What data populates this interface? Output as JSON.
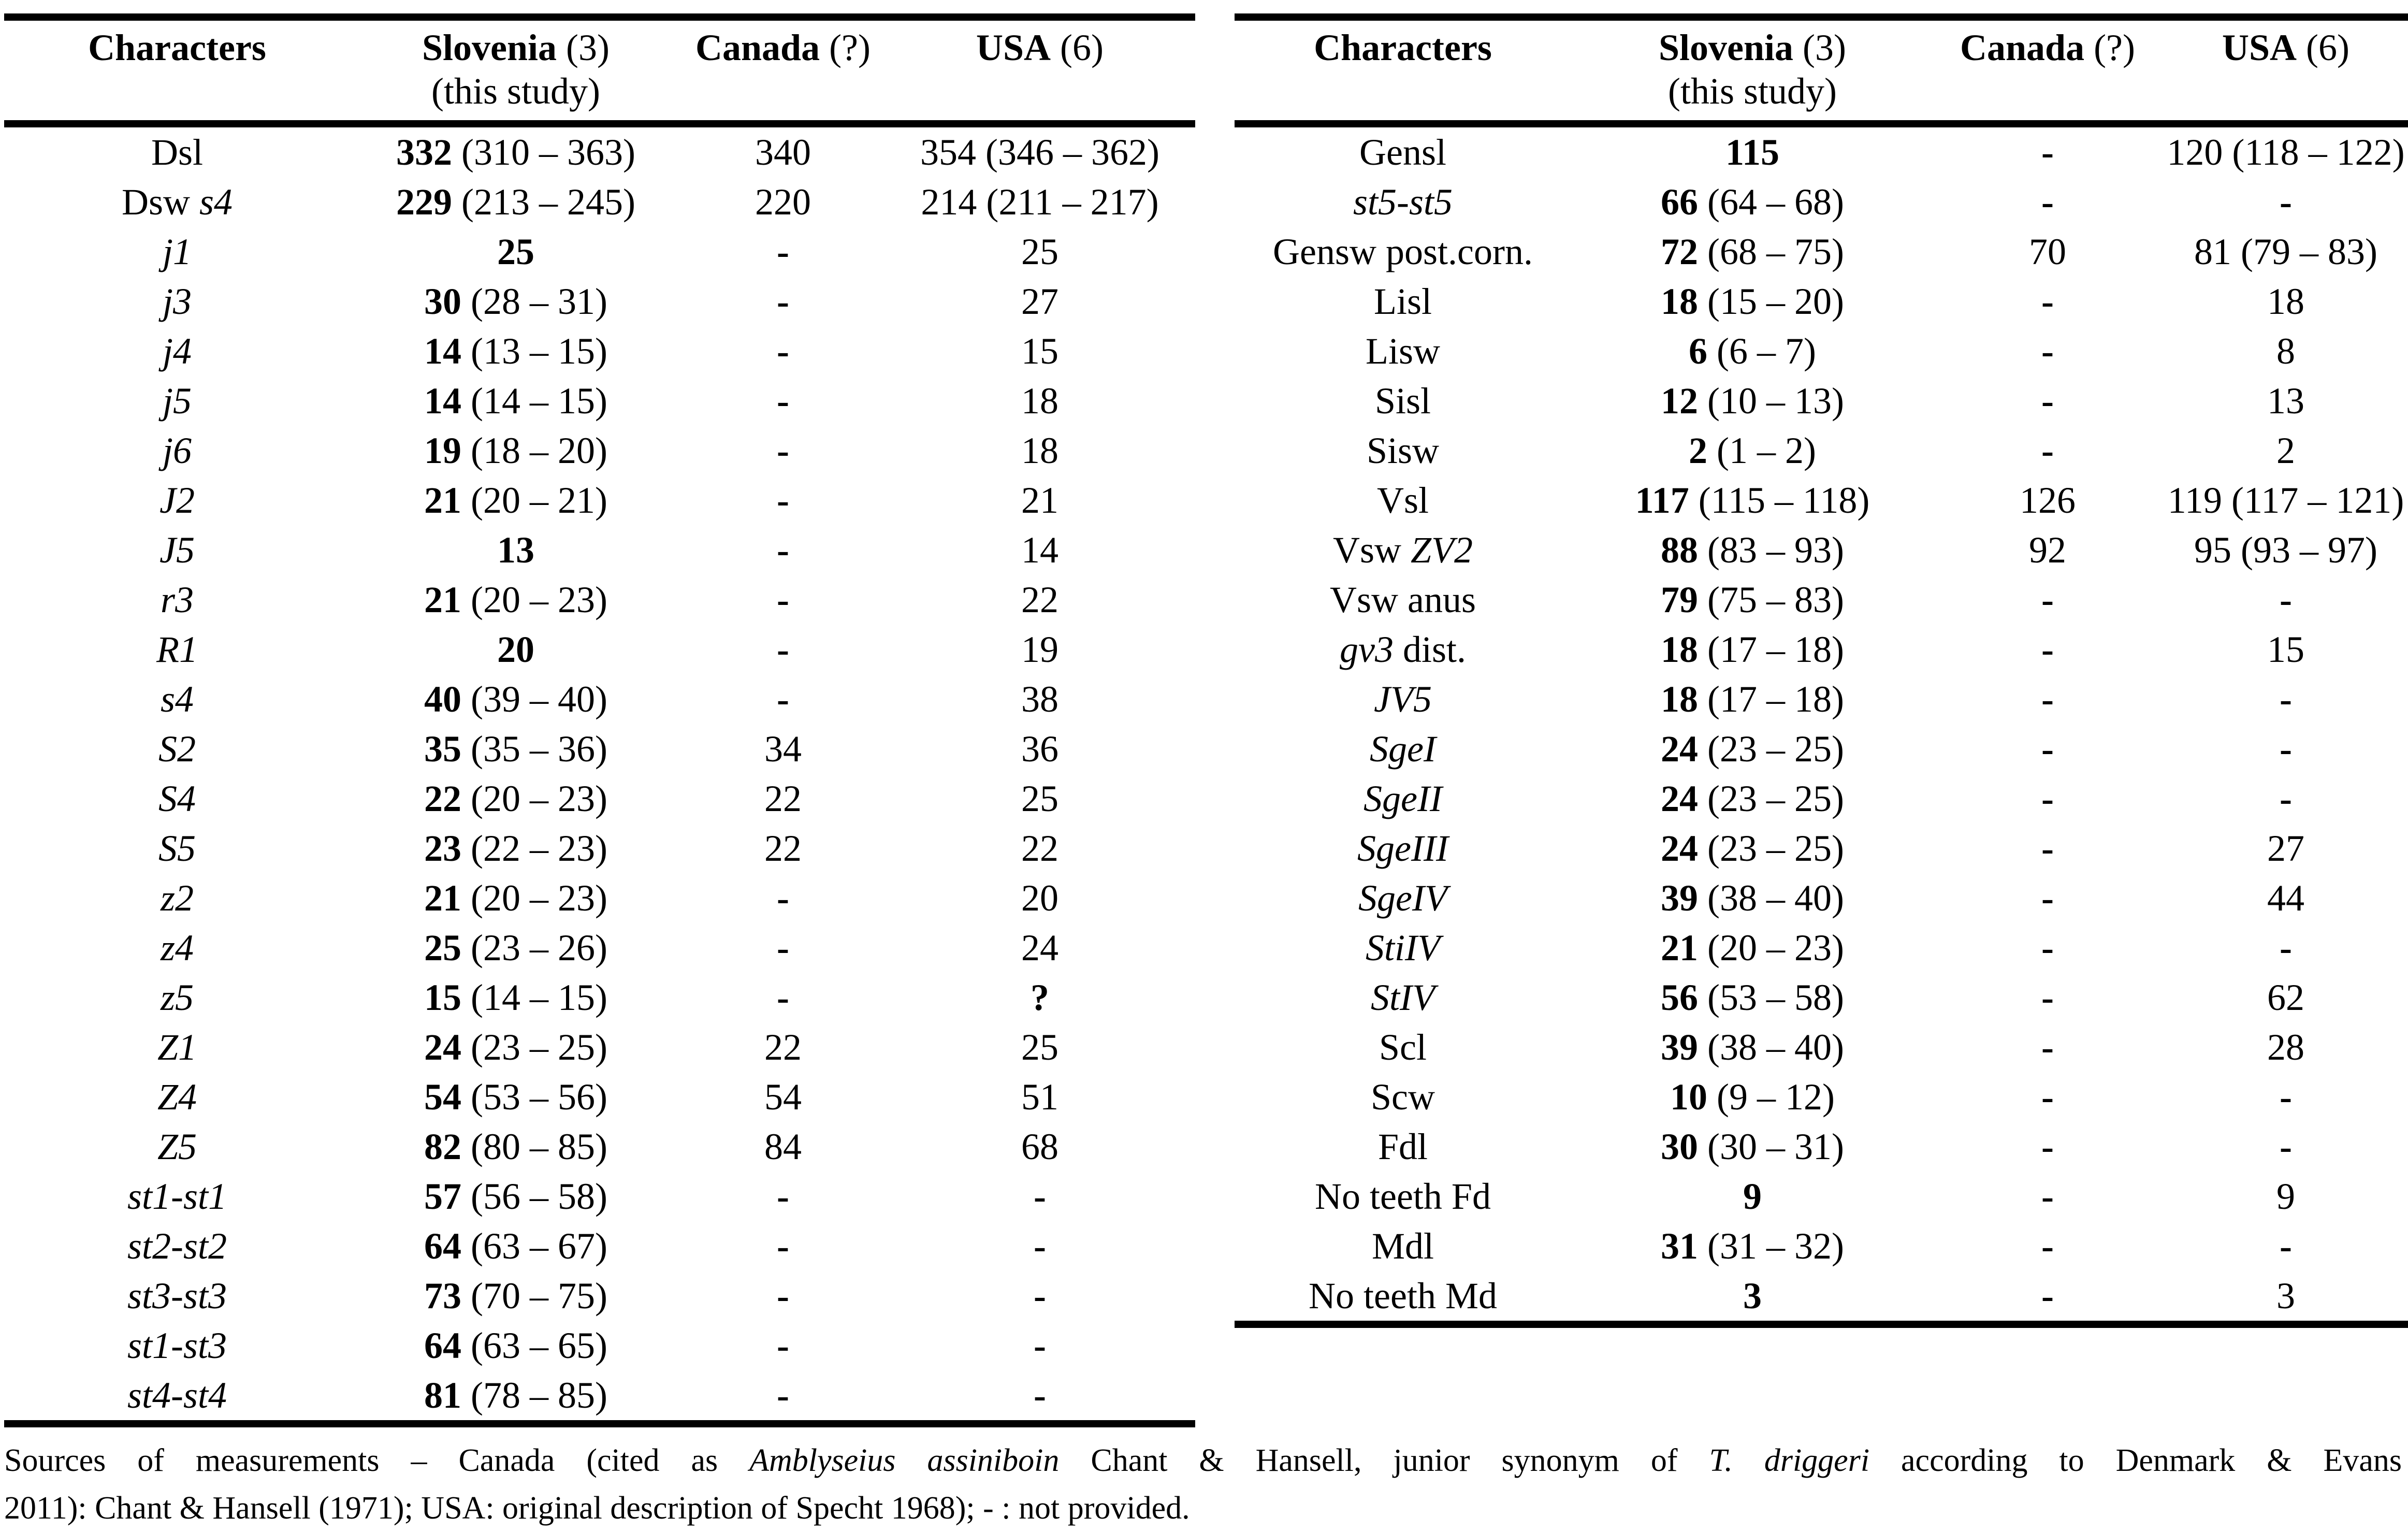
{
  "left_table": {
    "header": {
      "characters": "Characters",
      "slovenia": "Slovenia",
      "slovenia_count": " (3)",
      "this_study": "(this study)",
      "canada": "Canada",
      "canada_count": " (?)",
      "usa": "USA",
      "usa_count": " (6)"
    },
    "rows": [
      {
        "label": [
          {
            "t": "Dsl"
          }
        ],
        "mean": "332",
        "range": "(310 – 363)",
        "canada": "340",
        "usa": "354 (346 – 362)"
      },
      {
        "label": [
          {
            "t": "Dsw "
          },
          {
            "t": "s4",
            "i": true
          }
        ],
        "mean": "229",
        "range": "(213 – 245)",
        "canada": "220",
        "usa": "214 (211 – 217)"
      },
      {
        "label": [
          {
            "t": "j1",
            "i": true
          }
        ],
        "mean": "25",
        "range": "",
        "canada": "-",
        "usa": "25"
      },
      {
        "label": [
          {
            "t": "j3",
            "i": true
          }
        ],
        "mean": "30",
        "range": "(28 – 31)",
        "canada": "-",
        "usa": "27"
      },
      {
        "label": [
          {
            "t": "j4",
            "i": true
          }
        ],
        "mean": "14",
        "range": "(13 – 15)",
        "canada": "-",
        "usa": "15"
      },
      {
        "label": [
          {
            "t": "j5",
            "i": true
          }
        ],
        "mean": "14",
        "range": "(14 – 15)",
        "canada": "-",
        "usa": "18"
      },
      {
        "label": [
          {
            "t": "j6",
            "i": true
          }
        ],
        "mean": "19",
        "range": "(18 – 20)",
        "canada": "-",
        "usa": "18"
      },
      {
        "label": [
          {
            "t": "J2",
            "i": true
          }
        ],
        "mean": "21",
        "range": "(20 – 21)",
        "canada": "-",
        "usa": "21"
      },
      {
        "label": [
          {
            "t": "J5",
            "i": true
          }
        ],
        "mean": "13",
        "range": "",
        "canada": "-",
        "usa": "14"
      },
      {
        "label": [
          {
            "t": "r3",
            "i": true
          }
        ],
        "mean": "21",
        "range": "(20 – 23)",
        "canada": "-",
        "usa": "22"
      },
      {
        "label": [
          {
            "t": "R1",
            "i": true
          }
        ],
        "mean": "20",
        "range": "",
        "canada": "-",
        "usa": "19"
      },
      {
        "label": [
          {
            "t": "s4",
            "i": true
          }
        ],
        "mean": "40",
        "range": "(39 – 40)",
        "canada": "-",
        "usa": "38"
      },
      {
        "label": [
          {
            "t": "S2",
            "i": true
          }
        ],
        "mean": "35",
        "range": "(35 – 36)",
        "canada": "34",
        "usa": "36"
      },
      {
        "label": [
          {
            "t": "S4",
            "i": true
          }
        ],
        "mean": "22",
        "range": "(20 – 23)",
        "canada": "22",
        "usa": "25"
      },
      {
        "label": [
          {
            "t": "S5",
            "i": true
          }
        ],
        "mean": "23",
        "range": "(22 – 23)",
        "canada": "22",
        "usa": "22"
      },
      {
        "label": [
          {
            "t": "z2",
            "i": true
          }
        ],
        "mean": "21",
        "range": "(20 – 23)",
        "canada": "-",
        "usa": "20"
      },
      {
        "label": [
          {
            "t": "z4",
            "i": true
          }
        ],
        "mean": "25",
        "range": "(23 – 26)",
        "canada": "-",
        "usa": "24"
      },
      {
        "label": [
          {
            "t": "z5",
            "i": true
          }
        ],
        "mean": "15",
        "range": "(14 – 15)",
        "canada": "-",
        "usa": "?",
        "usa_bold": true
      },
      {
        "label": [
          {
            "t": "Z1",
            "i": true
          }
        ],
        "mean": "24",
        "range": "(23 – 25)",
        "canada": "22",
        "usa": "25"
      },
      {
        "label": [
          {
            "t": "Z4",
            "i": true
          }
        ],
        "mean": "54",
        "range": "(53 – 56)",
        "canada": "54",
        "usa": "51"
      },
      {
        "label": [
          {
            "t": "Z5",
            "i": true
          }
        ],
        "mean": "82",
        "range": "(80 – 85)",
        "canada": "84",
        "usa": "68"
      },
      {
        "label": [
          {
            "t": "st1-st1",
            "i": true
          }
        ],
        "mean": "57",
        "range": "(56 – 58)",
        "canada": "-",
        "usa": "-"
      },
      {
        "label": [
          {
            "t": "st2-st2",
            "i": true
          }
        ],
        "mean": "64",
        "range": "(63 – 67)",
        "canada": "-",
        "usa": "-"
      },
      {
        "label": [
          {
            "t": "st3-st3",
            "i": true
          }
        ],
        "mean": "73",
        "range": "(70 – 75)",
        "canada": "-",
        "usa": "-"
      },
      {
        "label": [
          {
            "t": "st1-st3",
            "i": true
          }
        ],
        "mean": "64",
        "range": "(63 – 65)",
        "canada": "-",
        "usa": "-"
      },
      {
        "label": [
          {
            "t": "st4-st4",
            "i": true
          }
        ],
        "mean": "81",
        "range": "(78 – 85)",
        "canada": "-",
        "usa": "-"
      }
    ]
  },
  "right_table": {
    "header": {
      "characters": "Characters",
      "slovenia": "Slovenia",
      "slovenia_count": " (3)",
      "this_study": "(this study)",
      "canada": "Canada",
      "canada_count": " (?)",
      "usa": "USA",
      "usa_count": " (6)"
    },
    "rows": [
      {
        "label": [
          {
            "t": "Gensl"
          }
        ],
        "mean": "115",
        "range": "",
        "canada": "-",
        "usa": "120 (118 – 122)"
      },
      {
        "label": [
          {
            "t": "st5-st5",
            "i": true
          }
        ],
        "mean": "66",
        "range": "(64 – 68)",
        "canada": "-",
        "usa": "-"
      },
      {
        "label": [
          {
            "t": "Gensw post.corn."
          }
        ],
        "mean": "72",
        "range": "(68 – 75)",
        "canada": "70",
        "usa": "81 (79 – 83)"
      },
      {
        "label": [
          {
            "t": "Lisl"
          }
        ],
        "mean": "18",
        "range": "(15 – 20)",
        "canada": "-",
        "usa": "18"
      },
      {
        "label": [
          {
            "t": "Lisw"
          }
        ],
        "mean": "6",
        "range": "(6 – 7)",
        "canada": "-",
        "usa": "8"
      },
      {
        "label": [
          {
            "t": "Sisl"
          }
        ],
        "mean": "12",
        "range": "(10 – 13)",
        "canada": "-",
        "usa": "13"
      },
      {
        "label": [
          {
            "t": "Sisw"
          }
        ],
        "mean": "2",
        "range": "(1 – 2)",
        "canada": "-",
        "usa": "2"
      },
      {
        "label": [
          {
            "t": "Vsl"
          }
        ],
        "mean": "117",
        "range": "(115 – 118)",
        "canada": "126",
        "usa": "119 (117 – 121)"
      },
      {
        "label": [
          {
            "t": "Vsw "
          },
          {
            "t": "ZV2",
            "i": true
          }
        ],
        "mean": "88",
        "range": "(83 – 93)",
        "canada": "92",
        "usa": "95 (93 – 97)"
      },
      {
        "label": [
          {
            "t": "Vsw anus"
          }
        ],
        "mean": "79",
        "range": "(75 – 83)",
        "canada": "-",
        "usa": "-"
      },
      {
        "label": [
          {
            "t": "gv3",
            "i": true
          },
          {
            "t": " dist."
          }
        ],
        "mean": "18",
        "range": "(17 – 18)",
        "canada": "-",
        "usa": "15"
      },
      {
        "label": [
          {
            "t": "JV5",
            "i": true
          }
        ],
        "mean": "18",
        "range": "(17 – 18)",
        "canada": "-",
        "usa": "-"
      },
      {
        "label": [
          {
            "t": "SgeI",
            "i": true
          }
        ],
        "mean": "24",
        "range": "(23 – 25)",
        "canada": "-",
        "usa": "-"
      },
      {
        "label": [
          {
            "t": "SgeII",
            "i": true
          }
        ],
        "mean": "24",
        "range": "(23 – 25)",
        "canada": "-",
        "usa": "-"
      },
      {
        "label": [
          {
            "t": "SgeIII",
            "i": true
          }
        ],
        "mean": "24",
        "range": "(23 – 25)",
        "canada": "-",
        "usa": "27"
      },
      {
        "label": [
          {
            "t": "SgeIV",
            "i": true
          }
        ],
        "mean": "39",
        "range": "(38 – 40)",
        "canada": "-",
        "usa": "44"
      },
      {
        "label": [
          {
            "t": "StiIV",
            "i": true
          }
        ],
        "mean": "21",
        "range": "(20 – 23)",
        "canada": "-",
        "usa": "-"
      },
      {
        "label": [
          {
            "t": "StIV",
            "i": true
          }
        ],
        "mean": "56",
        "range": "(53 – 58)",
        "canada": "-",
        "usa": "62"
      },
      {
        "label": [
          {
            "t": "Scl"
          }
        ],
        "mean": "39",
        "range": "(38 – 40)",
        "canada": "-",
        "usa": "28"
      },
      {
        "label": [
          {
            "t": "Scw"
          }
        ],
        "mean": "10",
        "range": "(9 – 12)",
        "canada": "-",
        "usa": "-"
      },
      {
        "label": [
          {
            "t": "Fdl"
          }
        ],
        "mean": "30",
        "range": "(30 – 31)",
        "canada": "-",
        "usa": "-"
      },
      {
        "label": [
          {
            "t": "No teeth Fd"
          }
        ],
        "mean": "9",
        "range": "",
        "canada": "-",
        "usa": "9"
      },
      {
        "label": [
          {
            "t": "Mdl"
          }
        ],
        "mean": "31",
        "range": "(31 – 32)",
        "canada": "-",
        "usa": "-"
      },
      {
        "label": [
          {
            "t": "No teeth Md"
          }
        ],
        "mean": "3",
        "range": "",
        "canada": "-",
        "usa": "3"
      }
    ]
  },
  "footnote": {
    "line1_parts": [
      {
        "t": "Sources of measurements – Canada (cited as "
      },
      {
        "t": "Amblyseius assiniboin",
        "i": true
      },
      {
        "t": " Chant & Hansell, junior synonym of "
      },
      {
        "t": "T. driggeri",
        "i": true
      },
      {
        "t": " according to Denmark & Evans"
      }
    ],
    "line2": "2011): Chant & Hansell (1971); USA: original description of Specht 1968); - : not provided."
  },
  "colors": {
    "text": "#000000",
    "background": "#ffffff",
    "rule": "#000000"
  }
}
